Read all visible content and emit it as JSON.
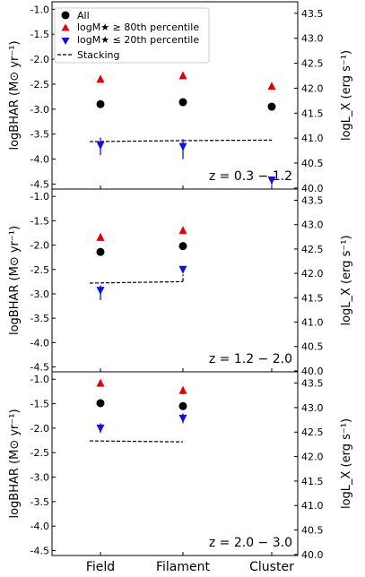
{
  "chart_data": {
    "type": "scatter",
    "categories": [
      "Field",
      "Filament",
      "Cluster"
    ],
    "ylabel_left": "logBHAR (M⊙ yr⁻¹)",
    "ylabel_right": "logL_X (erg s⁻¹)",
    "ylim": [
      -4.6,
      -0.85
    ],
    "yticks_left": [
      "-1.0",
      "-1.5",
      "-2.0",
      "-2.5",
      "-3.0",
      "-3.5",
      "-4.0",
      "-4.5"
    ],
    "yticks_right": [
      "43.5",
      "43.0",
      "42.5",
      "42.0",
      "41.5",
      "41.0",
      "40.5",
      "40.0"
    ],
    "legend": {
      "placement": "top-left",
      "entries": [
        "All",
        "logM★ ≥ 80th percentile",
        "logM★ ≤ 20th percentile",
        "Stacking"
      ]
    },
    "colors": {
      "all": "#000000",
      "high": "#e00000",
      "low": "#1010e0",
      "stacking": "#000000"
    },
    "panels": [
      {
        "label": "z = 0.3 − 1.2",
        "series": [
          {
            "name": "All",
            "values": [
              -2.9,
              -2.86,
              -2.95
            ],
            "yerr_low": [
              0.05,
              0.05,
              0.05
            ],
            "yerr_high": [
              0.05,
              0.05,
              0.05
            ]
          },
          {
            "name": "logM★ ≥ 80th percentile",
            "values": [
              -2.4,
              -2.33,
              -2.54
            ],
            "yerr_low": [
              0.04,
              0.04,
              0.04
            ],
            "yerr_high": [
              0.04,
              0.04,
              0.04
            ]
          },
          {
            "name": "logM★ ≤ 20th percentile",
            "values": [
              -3.72,
              -3.75,
              -4.42
            ],
            "yerr_low": [
              0.2,
              0.25,
              0.1
            ],
            "yerr_high": [
              0.15,
              0.15,
              0.05
            ]
          }
        ],
        "stacking": [
          -3.65,
          -3.63,
          -3.62
        ]
      },
      {
        "label": "z = 1.2 − 2.0",
        "series": [
          {
            "name": "All",
            "values": [
              -2.14,
              -2.02,
              null
            ],
            "yerr_low": [
              0.05,
              0.05,
              0
            ],
            "yerr_high": [
              0.05,
              0.05,
              0
            ]
          },
          {
            "name": "logM★ ≥ 80th percentile",
            "values": [
              -1.84,
              -1.7,
              null
            ],
            "yerr_low": [
              0.04,
              0.04,
              0
            ],
            "yerr_high": [
              0.04,
              0.04,
              0
            ]
          },
          {
            "name": "logM★ ≤ 20th percentile",
            "values": [
              -2.93,
              -2.5,
              null
            ],
            "yerr_low": [
              0.2,
              0.05,
              0
            ],
            "yerr_high": [
              0.1,
              0.05,
              0
            ]
          }
        ],
        "stacking": [
          -2.78,
          -2.75,
          null
        ]
      },
      {
        "label": "z = 2.0 − 3.0",
        "series": [
          {
            "name": "All",
            "values": [
              -1.49,
              -1.55,
              null
            ],
            "yerr_low": [
              0.05,
              0.05,
              0
            ],
            "yerr_high": [
              0.05,
              0.05,
              0
            ]
          },
          {
            "name": "logM★ ≥ 80th percentile",
            "values": [
              -1.08,
              -1.23,
              null
            ],
            "yerr_low": [
              0.04,
              0.08,
              0
            ],
            "yerr_high": [
              0.04,
              0.08,
              0
            ]
          },
          {
            "name": "logM★ ≤ 20th percentile",
            "values": [
              -2.0,
              -1.8,
              null
            ],
            "yerr_low": [
              0.1,
              0.1,
              0
            ],
            "yerr_high": [
              0.1,
              0.1,
              0
            ]
          }
        ],
        "stacking": [
          -2.26,
          -2.28,
          null
        ]
      }
    ]
  }
}
